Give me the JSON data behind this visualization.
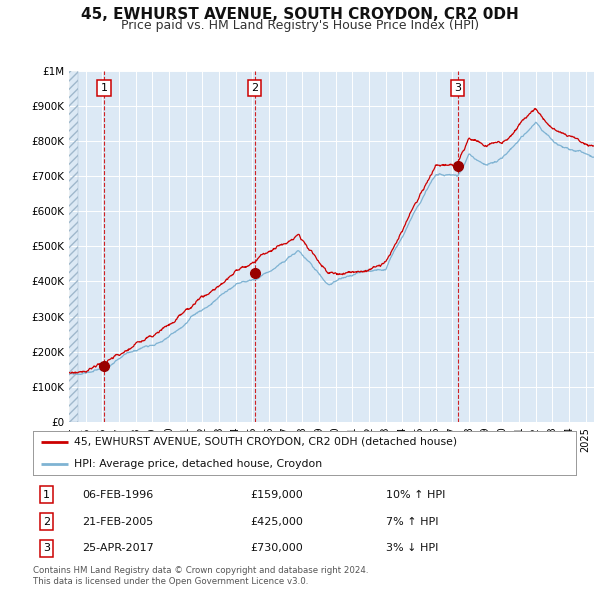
{
  "title": "45, EWHURST AVENUE, SOUTH CROYDON, CR2 0DH",
  "subtitle": "Price paid vs. HM Land Registry's House Price Index (HPI)",
  "title_fontsize": 11,
  "subtitle_fontsize": 9,
  "plot_bg_color": "#dce9f5",
  "fig_bg_color": "#ffffff",
  "hpi_color": "#7fb3d3",
  "price_color": "#cc0000",
  "marker_color": "#990000",
  "dashed_color": "#cc0000",
  "ylim": [
    0,
    1000000
  ],
  "yticks": [
    0,
    100000,
    200000,
    300000,
    400000,
    500000,
    600000,
    700000,
    800000,
    900000,
    1000000
  ],
  "ytick_labels": [
    "£0",
    "£100K",
    "£200K",
    "£300K",
    "£400K",
    "£500K",
    "£600K",
    "£700K",
    "£800K",
    "£900K",
    "£1M"
  ],
  "xlim_start": 1994.0,
  "xlim_end": 2025.5,
  "transactions": [
    {
      "label": "1",
      "date_str": "06-FEB-1996",
      "date_num": 1996.1,
      "price": 159000,
      "pct": "10%",
      "dir": "↑"
    },
    {
      "label": "2",
      "date_str": "21-FEB-2005",
      "date_num": 2005.13,
      "price": 425000,
      "pct": "7%",
      "dir": "↑"
    },
    {
      "label": "3",
      "date_str": "25-APR-2017",
      "date_num": 2017.32,
      "price": 730000,
      "pct": "3%",
      "dir": "↓"
    }
  ],
  "legend_label_price": "45, EWHURST AVENUE, SOUTH CROYDON, CR2 0DH (detached house)",
  "legend_label_hpi": "HPI: Average price, detached house, Croydon",
  "footer_line1": "Contains HM Land Registry data © Crown copyright and database right 2024.",
  "footer_line2": "This data is licensed under the Open Government Licence v3.0.",
  "grid_color": "#ffffff"
}
